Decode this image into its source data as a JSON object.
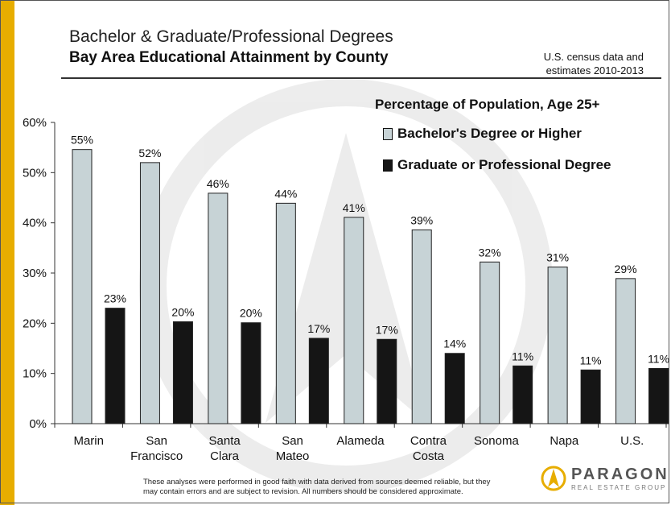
{
  "header": {
    "title": "Bachelor & Graduate/Professional Degrees",
    "subtitle": "Bay Area Educational Attainment by County",
    "source_line1": "U.S. census data and",
    "source_line2": "estimates 2010-2013"
  },
  "legend": {
    "title": "Percentage of Population,  Age 25+",
    "items": [
      "Bachelor's Degree or Higher",
      "Graduate or Professional Degree"
    ]
  },
  "footnote": {
    "line1": "These analyses were performed in good faith with data derived from sources  deemed reliable, but they",
    "line2": "may contain errors  and are subject to revision.  All numbers should be considered approximate."
  },
  "logo": {
    "name": "PARAGON",
    "tagline": "REAL ESTATE GROUP"
  },
  "colors": {
    "accent_bar": "#e7ad00",
    "bachelor": "#c7d3d6",
    "graduate": "#151515"
  },
  "chart_data": {
    "type": "bar",
    "categories": [
      [
        "Marin"
      ],
      [
        "San",
        "Francisco"
      ],
      [
        "Santa",
        "Clara"
      ],
      [
        "San",
        "Mateo"
      ],
      [
        "Alameda"
      ],
      [
        "Contra",
        "Costa"
      ],
      [
        "Sonoma"
      ],
      [
        "Napa"
      ],
      [
        "U.S."
      ]
    ],
    "series": [
      {
        "name": "Bachelor's Degree or Higher",
        "values": [
          54.6,
          52.0,
          45.9,
          43.9,
          41.1,
          38.6,
          32.2,
          31.2,
          28.9
        ],
        "labels": [
          "55%",
          "52%",
          "46%",
          "44%",
          "41%",
          "39%",
          "32%",
          "31%",
          "29%"
        ]
      },
      {
        "name": "Graduate or Professional Degree",
        "values": [
          23.0,
          20.3,
          20.1,
          17.0,
          16.8,
          14.0,
          11.5,
          10.7,
          11.0
        ],
        "labels": [
          "23%",
          "20%",
          "20%",
          "17%",
          "17%",
          "14%",
          "11%",
          "11%",
          "11%"
        ]
      }
    ],
    "y_ticks": [
      "0%",
      "10%",
      "20%",
      "30%",
      "40%",
      "50%",
      "60%"
    ],
    "ylim": [
      0,
      60
    ],
    "grid": false,
    "legend_position": "top-right"
  }
}
